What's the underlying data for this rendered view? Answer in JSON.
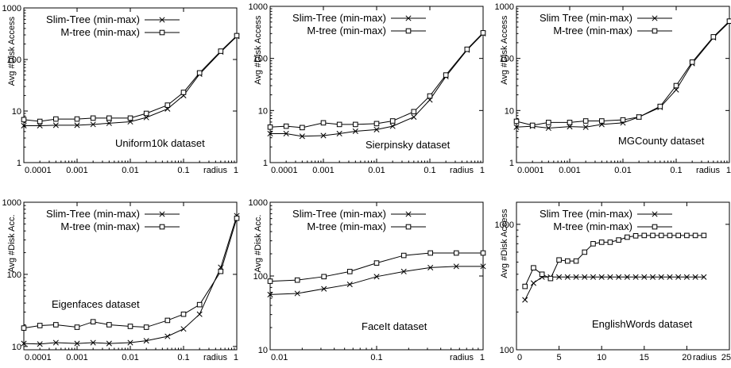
{
  "chart_data": [
    {
      "type": "line",
      "annotation": "Uniform10k dataset",
      "ylabel": "Avg #Disk Access",
      "xlabel": "radius",
      "xscale": "log",
      "yscale": "log",
      "xlim": [
        0.0001,
        1
      ],
      "ylim": [
        1,
        1000
      ],
      "xticks": [
        0.0001,
        0.001,
        0.01,
        0.1,
        1
      ],
      "xticklabels": [
        "0.0001",
        "0.001",
        "0.01",
        "0.1",
        "1"
      ],
      "yticks": [
        1,
        10,
        100,
        1000
      ],
      "yticklabels": [
        "1",
        "10",
        "100",
        "1000"
      ],
      "legend_position": "top-left",
      "series": [
        {
          "name": "Slim-Tree (min-max)",
          "marker": "x",
          "x": [
            0.0001,
            0.0002,
            0.0004,
            0.001,
            0.002,
            0.004,
            0.01,
            0.02,
            0.05,
            0.1,
            0.2,
            0.5,
            1
          ],
          "y": [
            5.2,
            5.2,
            5.3,
            5.3,
            5.5,
            5.8,
            6.2,
            7.5,
            11,
            20,
            52,
            140,
            280
          ]
        },
        {
          "name": "M-tree (min-max)",
          "marker": "square",
          "x": [
            0.0001,
            0.0002,
            0.0004,
            0.001,
            0.002,
            0.004,
            0.01,
            0.02,
            0.05,
            0.1,
            0.2,
            0.5,
            1
          ],
          "y": [
            6.8,
            6.3,
            7,
            7,
            7.3,
            7.3,
            7.3,
            9,
            13,
            23,
            55,
            145,
            290
          ]
        }
      ]
    },
    {
      "type": "line",
      "annotation": "Sierpinsky dataset",
      "ylabel": "Avg #Disk Access",
      "xlabel": "radius",
      "xscale": "log",
      "yscale": "log",
      "xlim": [
        0.0001,
        1
      ],
      "ylim": [
        1,
        1000
      ],
      "xticks": [
        0.0001,
        0.001,
        0.01,
        0.1,
        1
      ],
      "xticklabels": [
        "0.0001",
        "0.001",
        "0.01",
        "0.1",
        "1"
      ],
      "yticks": [
        1,
        10,
        100,
        1000
      ],
      "yticklabels": [
        "1",
        "10",
        "100",
        "1000"
      ],
      "legend_position": "top-left",
      "series": [
        {
          "name": "Slim-Tree (min-max)",
          "marker": "x",
          "x": [
            0.0001,
            0.0002,
            0.0004,
            0.001,
            0.002,
            0.004,
            0.01,
            0.02,
            0.05,
            0.1,
            0.2,
            0.5,
            1
          ],
          "y": [
            3.6,
            3.6,
            3.2,
            3.3,
            3.6,
            4,
            4.3,
            5,
            7.5,
            16,
            45,
            145,
            300
          ]
        },
        {
          "name": "M-tree (min-max)",
          "marker": "square",
          "x": [
            0.0001,
            0.0002,
            0.0004,
            0.001,
            0.002,
            0.004,
            0.01,
            0.02,
            0.05,
            0.1,
            0.2,
            0.5,
            1
          ],
          "y": [
            4.8,
            5,
            4.7,
            5.8,
            5.4,
            5.4,
            5.6,
            6.3,
            9.5,
            19,
            48,
            150,
            310
          ]
        }
      ]
    },
    {
      "type": "line",
      "annotation": "MGCounty dataset",
      "ylabel": "Avg #Disk Access",
      "xlabel": "radius",
      "xscale": "log",
      "yscale": "log",
      "xlim": [
        0.0001,
        1
      ],
      "ylim": [
        1,
        1000
      ],
      "xticks": [
        0.0001,
        0.001,
        0.01,
        0.1,
        1
      ],
      "xticklabels": [
        "0.0001",
        "0.001",
        "0.01",
        "0.1",
        "1"
      ],
      "yticks": [
        1,
        10,
        100,
        1000
      ],
      "yticklabels": [
        "1",
        "10",
        "100",
        "1000"
      ],
      "legend_position": "top-left",
      "series": [
        {
          "name": "Slim Tree (min-max)",
          "marker": "x",
          "x": [
            0.0001,
            0.0002,
            0.0004,
            0.001,
            0.002,
            0.004,
            0.01,
            0.02,
            0.05,
            0.1,
            0.2,
            0.5,
            1
          ],
          "y": [
            4.8,
            5,
            4.6,
            4.9,
            4.8,
            5.4,
            5.8,
            7.5,
            11.5,
            25,
            80,
            250,
            500
          ]
        },
        {
          "name": "M-tree (min-max)",
          "marker": "square",
          "x": [
            0.0001,
            0.0002,
            0.0004,
            0.001,
            0.002,
            0.004,
            0.01,
            0.02,
            0.05,
            0.1,
            0.2,
            0.5,
            1
          ],
          "y": [
            6.2,
            5.2,
            5.9,
            5.9,
            6.3,
            6.3,
            6.6,
            7.5,
            12,
            30,
            85,
            260,
            520
          ]
        }
      ]
    },
    {
      "type": "line",
      "annotation": "Eigenfaces dataset",
      "ylabel": "Avg #Disk Acc.",
      "xlabel": "radius",
      "xscale": "log",
      "yscale": "log",
      "xlim": [
        0.0001,
        1
      ],
      "ylim": [
        9,
        1000
      ],
      "xticks": [
        0.0001,
        0.001,
        0.01,
        0.1,
        1
      ],
      "xticklabels": [
        "0.0001",
        "0.001",
        "0.01",
        "0.1",
        "1"
      ],
      "yticks": [
        10,
        100,
        1000
      ],
      "yticklabels": [
        "10",
        "100",
        "1000"
      ],
      "legend_position": "top-left",
      "series": [
        {
          "name": "Slim-Tree (min-max)",
          "marker": "x",
          "x": [
            0.0001,
            0.0002,
            0.0004,
            0.001,
            0.002,
            0.004,
            0.01,
            0.02,
            0.05,
            0.1,
            0.2,
            0.5,
            1
          ],
          "y": [
            11,
            10.8,
            11.3,
            11,
            11.3,
            11,
            11.3,
            12,
            13.8,
            17.5,
            28,
            125,
            650
          ]
        },
        {
          "name": "M-tree (min-max)",
          "marker": "square",
          "x": [
            0.0001,
            0.0002,
            0.0004,
            0.001,
            0.002,
            0.004,
            0.01,
            0.02,
            0.05,
            0.1,
            0.2,
            0.5,
            1
          ],
          "y": [
            18,
            19.5,
            20,
            18.5,
            22,
            20,
            19,
            18.5,
            23,
            28,
            38,
            110,
            600
          ]
        }
      ]
    },
    {
      "type": "line",
      "annotation": "FaceIt dataset",
      "ylabel": "Avg #Disk Acc.",
      "xlabel": "radius",
      "xscale": "log",
      "yscale": "log",
      "xlim": [
        0.01,
        1
      ],
      "ylim": [
        10,
        1000
      ],
      "xticks": [
        0.01,
        0.1,
        1
      ],
      "xticklabels": [
        "0.01",
        "0.1",
        "1"
      ],
      "yticks": [
        10,
        100,
        1000
      ],
      "yticklabels": [
        "10",
        "100",
        "1000"
      ],
      "legend_position": "top-left",
      "series": [
        {
          "name": "Slim-Tree (min-max)",
          "marker": "x",
          "x": [
            0.01,
            0.018,
            0.032,
            0.056,
            0.1,
            0.18,
            0.32,
            0.56,
            1
          ],
          "y": [
            56,
            58,
            67,
            77,
            98,
            115,
            130,
            135,
            135
          ]
        },
        {
          "name": "M-tree (min-max)",
          "marker": "square",
          "x": [
            0.01,
            0.018,
            0.032,
            0.056,
            0.1,
            0.18,
            0.32,
            0.56,
            1
          ],
          "y": [
            85,
            88,
            98,
            115,
            150,
            190,
            205,
            205,
            205
          ]
        }
      ]
    },
    {
      "type": "line",
      "annotation": "EnglishWords dataset",
      "ylabel": "Avg #Disk Access",
      "xlabel": "radius",
      "xscale": "linear",
      "yscale": "log",
      "xlim": [
        0,
        25
      ],
      "ylim": [
        100,
        1500
      ],
      "xticks": [
        0,
        5,
        10,
        15,
        20,
        25
      ],
      "xticklabels": [
        "0",
        "5",
        "10",
        "15",
        "20",
        "25"
      ],
      "yticks": [
        100,
        1000
      ],
      "yticklabels": [
        "100",
        "1000"
      ],
      "legend_position": "top-left",
      "series": [
        {
          "name": "Slim Tree (min-max)",
          "marker": "x",
          "x": [
            1,
            2,
            3,
            4,
            5,
            6,
            7,
            8,
            9,
            10,
            11,
            12,
            13,
            14,
            15,
            16,
            17,
            18,
            19,
            20,
            21,
            22
          ],
          "y": [
            250,
            340,
            380,
            380,
            380,
            380,
            380,
            380,
            380,
            380,
            380,
            380,
            380,
            380,
            380,
            380,
            380,
            380,
            380,
            380,
            380,
            380
          ]
        },
        {
          "name": "M-tree (min-max)",
          "marker": "square",
          "x": [
            1,
            2,
            3,
            4,
            5,
            6,
            7,
            8,
            9,
            10,
            11,
            12,
            13,
            14,
            15,
            16,
            17,
            18,
            19,
            20,
            21,
            22
          ],
          "y": [
            320,
            450,
            400,
            370,
            520,
            510,
            510,
            600,
            700,
            720,
            720,
            750,
            790,
            810,
            815,
            815,
            815,
            815,
            815,
            815,
            815,
            815
          ]
        }
      ]
    }
  ]
}
